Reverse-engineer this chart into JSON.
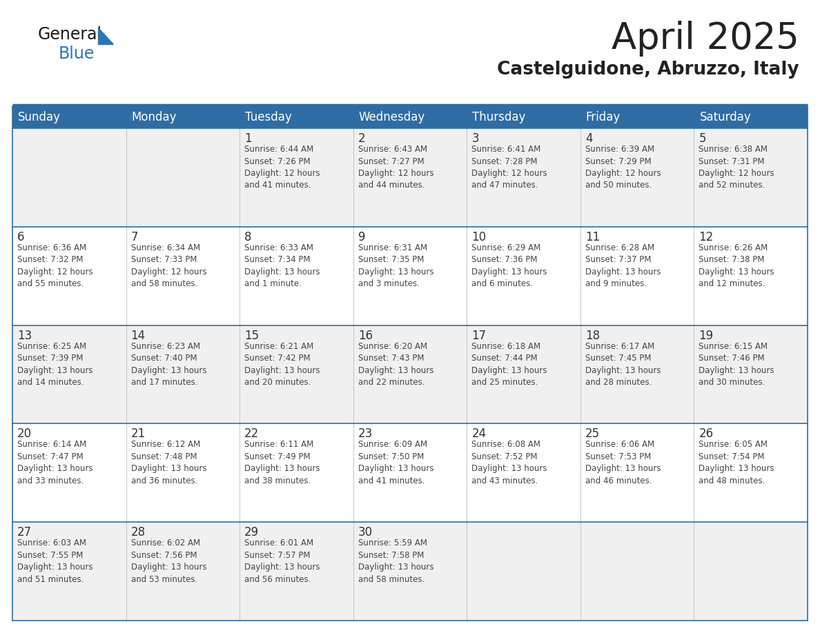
{
  "title": "April 2025",
  "subtitle": "Castelguidone, Abruzzo, Italy",
  "header_bg": "#2E6DA4",
  "header_text_color": "#FFFFFF",
  "cell_bg_odd": "#F0F0F0",
  "cell_bg_even": "#FFFFFF",
  "day_number_color": "#333333",
  "cell_text_color": "#444444",
  "border_color": "#2E6DA4",
  "title_color": "#222222",
  "subtitle_color": "#222222",
  "days_of_week": [
    "Sunday",
    "Monday",
    "Tuesday",
    "Wednesday",
    "Thursday",
    "Friday",
    "Saturday"
  ],
  "weeks": [
    [
      {
        "day": "",
        "info": ""
      },
      {
        "day": "",
        "info": ""
      },
      {
        "day": "1",
        "info": "Sunrise: 6:44 AM\nSunset: 7:26 PM\nDaylight: 12 hours\nand 41 minutes."
      },
      {
        "day": "2",
        "info": "Sunrise: 6:43 AM\nSunset: 7:27 PM\nDaylight: 12 hours\nand 44 minutes."
      },
      {
        "day": "3",
        "info": "Sunrise: 6:41 AM\nSunset: 7:28 PM\nDaylight: 12 hours\nand 47 minutes."
      },
      {
        "day": "4",
        "info": "Sunrise: 6:39 AM\nSunset: 7:29 PM\nDaylight: 12 hours\nand 50 minutes."
      },
      {
        "day": "5",
        "info": "Sunrise: 6:38 AM\nSunset: 7:31 PM\nDaylight: 12 hours\nand 52 minutes."
      }
    ],
    [
      {
        "day": "6",
        "info": "Sunrise: 6:36 AM\nSunset: 7:32 PM\nDaylight: 12 hours\nand 55 minutes."
      },
      {
        "day": "7",
        "info": "Sunrise: 6:34 AM\nSunset: 7:33 PM\nDaylight: 12 hours\nand 58 minutes."
      },
      {
        "day": "8",
        "info": "Sunrise: 6:33 AM\nSunset: 7:34 PM\nDaylight: 13 hours\nand 1 minute."
      },
      {
        "day": "9",
        "info": "Sunrise: 6:31 AM\nSunset: 7:35 PM\nDaylight: 13 hours\nand 3 minutes."
      },
      {
        "day": "10",
        "info": "Sunrise: 6:29 AM\nSunset: 7:36 PM\nDaylight: 13 hours\nand 6 minutes."
      },
      {
        "day": "11",
        "info": "Sunrise: 6:28 AM\nSunset: 7:37 PM\nDaylight: 13 hours\nand 9 minutes."
      },
      {
        "day": "12",
        "info": "Sunrise: 6:26 AM\nSunset: 7:38 PM\nDaylight: 13 hours\nand 12 minutes."
      }
    ],
    [
      {
        "day": "13",
        "info": "Sunrise: 6:25 AM\nSunset: 7:39 PM\nDaylight: 13 hours\nand 14 minutes."
      },
      {
        "day": "14",
        "info": "Sunrise: 6:23 AM\nSunset: 7:40 PM\nDaylight: 13 hours\nand 17 minutes."
      },
      {
        "day": "15",
        "info": "Sunrise: 6:21 AM\nSunset: 7:42 PM\nDaylight: 13 hours\nand 20 minutes."
      },
      {
        "day": "16",
        "info": "Sunrise: 6:20 AM\nSunset: 7:43 PM\nDaylight: 13 hours\nand 22 minutes."
      },
      {
        "day": "17",
        "info": "Sunrise: 6:18 AM\nSunset: 7:44 PM\nDaylight: 13 hours\nand 25 minutes."
      },
      {
        "day": "18",
        "info": "Sunrise: 6:17 AM\nSunset: 7:45 PM\nDaylight: 13 hours\nand 28 minutes."
      },
      {
        "day": "19",
        "info": "Sunrise: 6:15 AM\nSunset: 7:46 PM\nDaylight: 13 hours\nand 30 minutes."
      }
    ],
    [
      {
        "day": "20",
        "info": "Sunrise: 6:14 AM\nSunset: 7:47 PM\nDaylight: 13 hours\nand 33 minutes."
      },
      {
        "day": "21",
        "info": "Sunrise: 6:12 AM\nSunset: 7:48 PM\nDaylight: 13 hours\nand 36 minutes."
      },
      {
        "day": "22",
        "info": "Sunrise: 6:11 AM\nSunset: 7:49 PM\nDaylight: 13 hours\nand 38 minutes."
      },
      {
        "day": "23",
        "info": "Sunrise: 6:09 AM\nSunset: 7:50 PM\nDaylight: 13 hours\nand 41 minutes."
      },
      {
        "day": "24",
        "info": "Sunrise: 6:08 AM\nSunset: 7:52 PM\nDaylight: 13 hours\nand 43 minutes."
      },
      {
        "day": "25",
        "info": "Sunrise: 6:06 AM\nSunset: 7:53 PM\nDaylight: 13 hours\nand 46 minutes."
      },
      {
        "day": "26",
        "info": "Sunrise: 6:05 AM\nSunset: 7:54 PM\nDaylight: 13 hours\nand 48 minutes."
      }
    ],
    [
      {
        "day": "27",
        "info": "Sunrise: 6:03 AM\nSunset: 7:55 PM\nDaylight: 13 hours\nand 51 minutes."
      },
      {
        "day": "28",
        "info": "Sunrise: 6:02 AM\nSunset: 7:56 PM\nDaylight: 13 hours\nand 53 minutes."
      },
      {
        "day": "29",
        "info": "Sunrise: 6:01 AM\nSunset: 7:57 PM\nDaylight: 13 hours\nand 56 minutes."
      },
      {
        "day": "30",
        "info": "Sunrise: 5:59 AM\nSunset: 7:58 PM\nDaylight: 13 hours\nand 58 minutes."
      },
      {
        "day": "",
        "info": ""
      },
      {
        "day": "",
        "info": ""
      },
      {
        "day": "",
        "info": ""
      }
    ]
  ],
  "logo_general_color": "#1a1a1a",
  "logo_blue_color": "#2E75B6",
  "title_fontsize": 38,
  "subtitle_fontsize": 19,
  "header_fontsize": 12,
  "day_num_fontsize": 12,
  "cell_text_fontsize": 8.5
}
